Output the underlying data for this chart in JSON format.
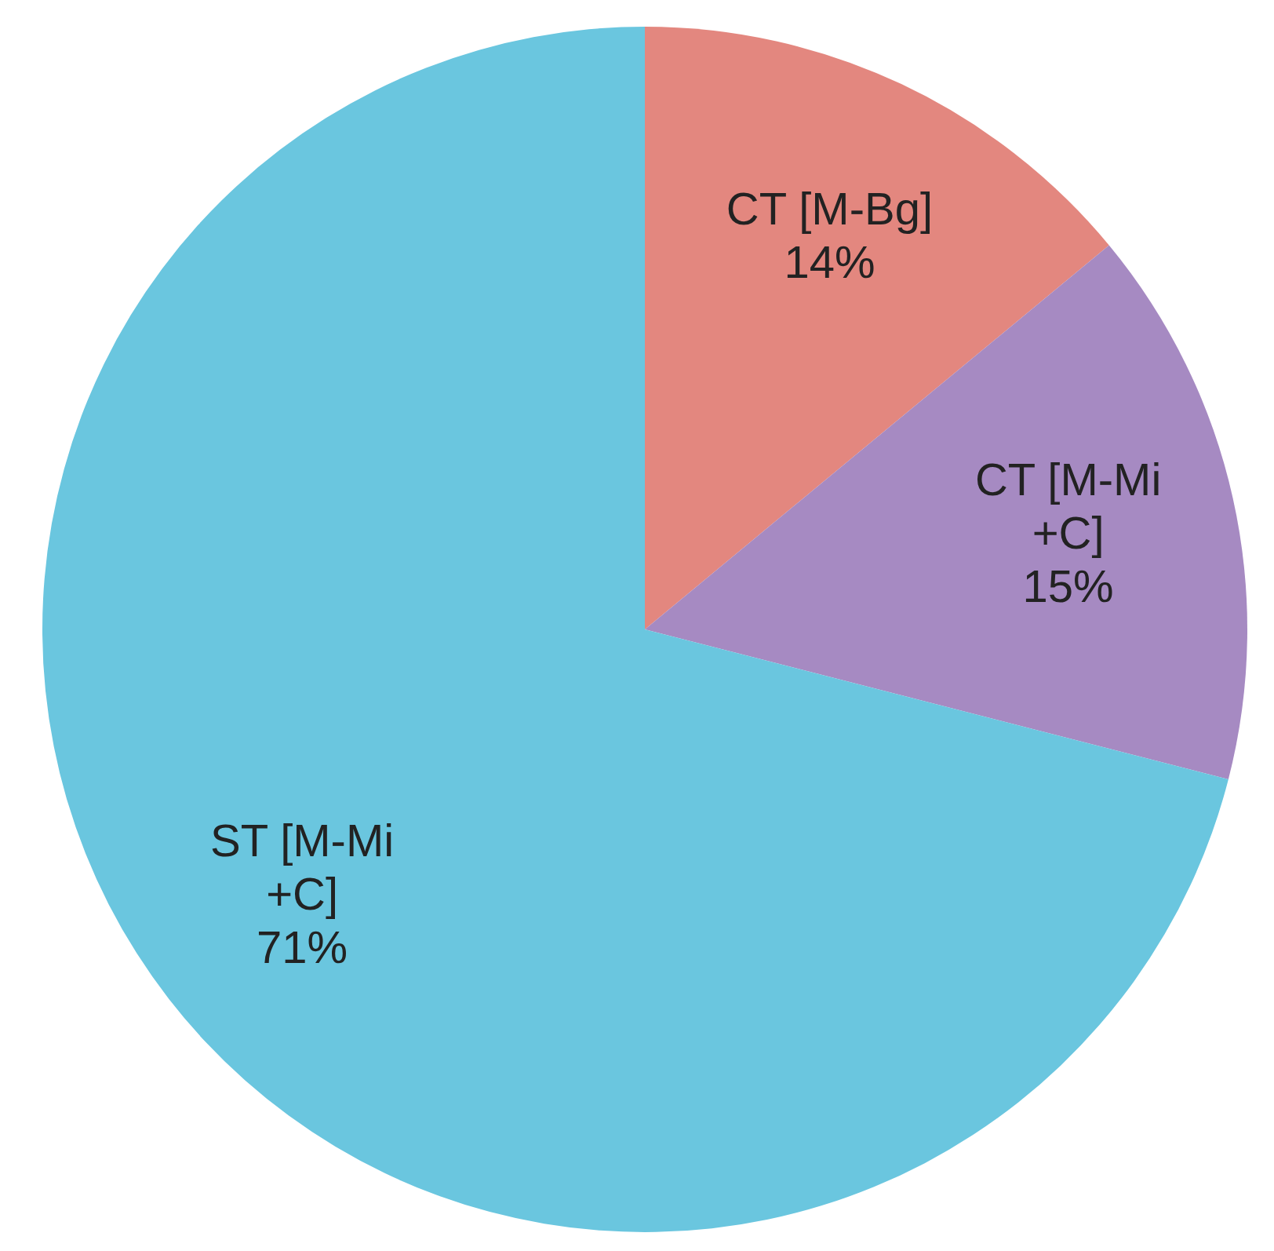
{
  "chart_data": {
    "type": "pie",
    "categories": [
      "CT [M-Bg]",
      "CT [M-Mi +C]",
      "ST [M-Mi +C]"
    ],
    "values": [
      14,
      15,
      71
    ],
    "value_labels": [
      "14%",
      "15%",
      "71%"
    ],
    "colors": [
      "#e3877f",
      "#a68ac2",
      "#6ac6df"
    ]
  }
}
